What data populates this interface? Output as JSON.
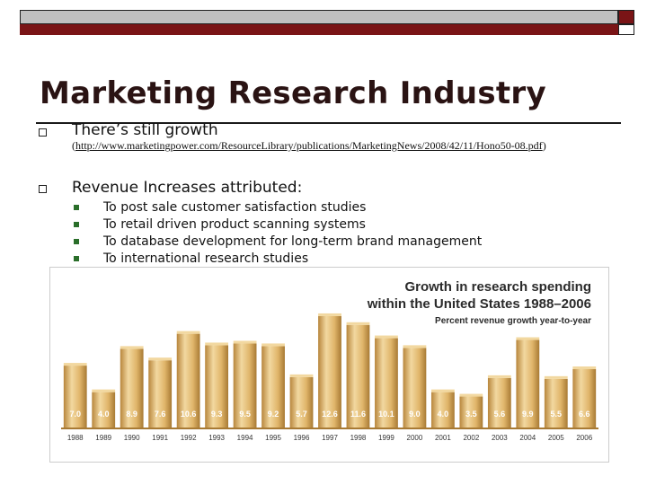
{
  "slide": {
    "title": "Marketing Research Industry",
    "bullets": [
      {
        "text": "There’s still growth",
        "url_open": "(",
        "url": "http://www.marketingpower.com/ResourceLibrary/publications/MarketingNews/2008/42/11/Hono50-08.pdf",
        "url_close": ")"
      },
      {
        "text": "Revenue Increases attributed:"
      }
    ],
    "sub_bullets": [
      "To post sale customer satisfaction studies",
      "To retail driven product scanning systems",
      "To database development for long-term brand management",
      "To international research studies"
    ]
  },
  "chart_data": {
    "type": "bar",
    "title": "Growth in research spending",
    "subtitle": "within the United States 1988–2006",
    "ylabel": "Percent revenue growth year-to-year",
    "categories": [
      "1988",
      "1989",
      "1990",
      "1991",
      "1992",
      "1993",
      "1994",
      "1995",
      "1996",
      "1997",
      "1998",
      "1999",
      "2000",
      "2001",
      "2002",
      "2003",
      "2004",
      "2005",
      "2006"
    ],
    "values": [
      7.0,
      4.0,
      8.9,
      7.6,
      10.6,
      9.3,
      9.5,
      9.2,
      5.7,
      12.6,
      11.6,
      10.1,
      9.0,
      4.0,
      3.5,
      5.6,
      9.9,
      5.5,
      6.6
    ],
    "labels": [
      "7.0",
      "4.0",
      "8.9",
      "7.6",
      "10.6",
      "9.3",
      "9.5",
      "9.2",
      "5.7",
      "12.6",
      "11.6",
      "10.1",
      "9.0",
      "4.0",
      "3.5",
      "5.6",
      "9.9",
      "5.5",
      "6.6"
    ],
    "ylim": [
      0,
      13
    ],
    "colors": {
      "bar": "#e0b56a",
      "bar_light": "#f2d8a0",
      "bar_dark": "#a87a34",
      "label": "#ffffff"
    }
  }
}
